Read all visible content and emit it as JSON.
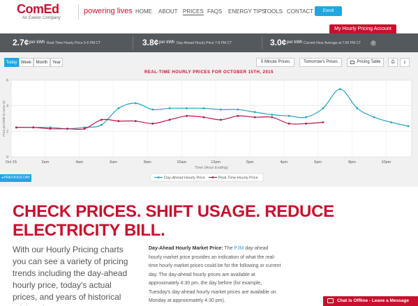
{
  "header": {
    "logo": "ComEd",
    "logo_sub": "An Exelon Company",
    "tagline": "powering lives",
    "nav": [
      {
        "label": "HOME",
        "active": false
      },
      {
        "label": "ABOUT",
        "active": false
      },
      {
        "label": "PRICES",
        "active": true
      },
      {
        "label": "FAQS",
        "active": false
      },
      {
        "label": "ENERGY TIPS",
        "active": false
      },
      {
        "label": "TOOLS",
        "active": false
      },
      {
        "label": "CONTACT",
        "active": false
      }
    ],
    "enroll_label": "Enroll",
    "account_label": "My Hourly Pricing Account"
  },
  "price_bar": [
    {
      "value": "2.7¢",
      "unit": "per kWh",
      "desc": "Real-Time Hourly Price 5-6 PM CT"
    },
    {
      "value": "3.8¢",
      "unit": "per kWh",
      "desc": "Day-Ahead Hourly Price 7-8 PM CT"
    },
    {
      "value": "3.0¢",
      "unit": "per kWh",
      "desc": "Current Hour Average at 7:00 PM CT"
    }
  ],
  "info_icon": "i",
  "tabs": [
    {
      "label": "Today",
      "active": true
    },
    {
      "label": "Week",
      "active": false
    },
    {
      "label": "Month",
      "active": false
    },
    {
      "label": "Year",
      "active": false
    }
  ],
  "tools": {
    "five_min": "5 Minute Prices",
    "tomorrow": "Tomorrow's Prices",
    "table": "Pricing Table"
  },
  "prev_day_label": "◂ PREVIOUS DAY",
  "chart_data": {
    "type": "line",
    "title": "REAL-TIME HOURLY PRICES FOR OCTOBER 15TH, 2015",
    "xlabel": "Time (Hour Ending)",
    "ylabel": "Price per kWh in cents (¢)",
    "ylim": [
      0,
      6
    ],
    "yticks": [
      0,
      2,
      4,
      6
    ],
    "xlim": [
      0,
      23.5
    ],
    "xticks": [
      {
        "x": 0,
        "label": "Oct 15"
      },
      {
        "x": 2,
        "label": "2am"
      },
      {
        "x": 4,
        "label": "4am"
      },
      {
        "x": 6,
        "label": "6am"
      },
      {
        "x": 8,
        "label": "8am"
      },
      {
        "x": 10,
        "label": "10am"
      },
      {
        "x": 12,
        "label": "12pm"
      },
      {
        "x": 14,
        "label": "2pm"
      },
      {
        "x": 16,
        "label": "4pm"
      },
      {
        "x": 18,
        "label": "6pm"
      },
      {
        "x": 20,
        "label": "8pm"
      },
      {
        "x": 22,
        "label": "10pm"
      }
    ],
    "grid": true,
    "legend": "bottom-center",
    "series": [
      {
        "name": "Day-Ahead Hourly Price",
        "color": "#2aa0c0",
        "x": [
          0.3,
          1.3,
          2.3,
          3.3,
          4.3,
          5.3,
          6.3,
          7.3,
          8.3,
          9.3,
          10.3,
          11.3,
          12.3,
          13.3,
          14.3,
          15.3,
          16.3,
          17.3,
          18.3,
          19.3,
          20.3,
          21.3,
          22.3,
          23.3
        ],
        "values": [
          2.3,
          2.3,
          2.3,
          2.2,
          2.3,
          2.5,
          3.8,
          4.2,
          3.7,
          3.8,
          3.8,
          3.8,
          3.7,
          3.7,
          3.5,
          3.3,
          3.2,
          3.1,
          3.8,
          5.3,
          3.8,
          3.1,
          2.7,
          2.4
        ]
      },
      {
        "name": "Real-Time Hourly Price",
        "color": "#b5164b",
        "x": [
          0.3,
          1.3,
          2.3,
          3.3,
          4.3,
          5.3,
          6.3,
          7.3,
          8.3,
          9.3,
          10.3,
          11.3,
          12.3,
          13.3,
          14.3,
          15.3,
          16.3,
          17.3,
          18.3
        ],
        "values": [
          2.3,
          2.3,
          2.2,
          2.2,
          2.2,
          2.9,
          2.8,
          2.8,
          2.6,
          2.9,
          3.2,
          3.1,
          2.9,
          3.2,
          3.1,
          3.1,
          2.6,
          2.6,
          2.7
        ]
      }
    ]
  },
  "headline": "CHECK PRICES. SHIFT USAGE. REDUCE ELECTRICITY BILL.",
  "lead": "With our Hourly Pricing charts you can see a variety of pricing trends including the day-ahead hourly price, today's actual prices, and years of historical pricing data.",
  "desc": {
    "label": "Day-Ahead Hourly Market Price:",
    "pre": " The ",
    "link": "PJM",
    "post": " day-ahead hourly market price provides an indication of what the real-time hourly market prices could be for the following or current day. The day-ahead hourly prices are available at approximately 4:30 pm, the day before (for example, Tuesday's day-ahead hourly market prices are available on Monday at approximately 4:30 pm)."
  },
  "chat_label": "Chat is Offline - Leave a Message"
}
